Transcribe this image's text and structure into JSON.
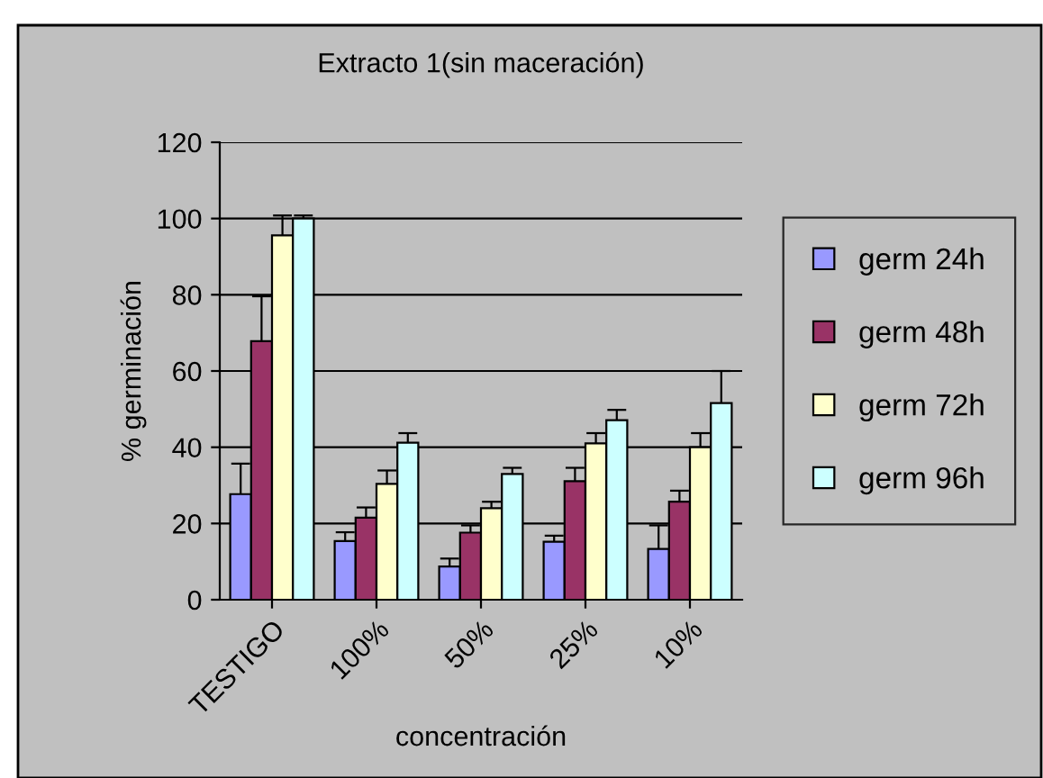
{
  "chart_data": {
    "type": "bar",
    "title": "Extracto 1(sin maceración)",
    "xlabel": "concentración",
    "ylabel": "% germinación",
    "categories": [
      "TESTIGO",
      "100%",
      "50%",
      "25%",
      "10%"
    ],
    "series": [
      {
        "name": "germ 24h",
        "color": "#9999ff",
        "values": [
          27.7,
          15.4,
          8.7,
          15.2,
          13.3
        ],
        "errors": [
          [
            27.7,
            35.7
          ],
          [
            15.4,
            17.7
          ],
          [
            8.7,
            10.8
          ],
          [
            15.2,
            16.8
          ],
          [
            13.3,
            19.5
          ]
        ]
      },
      {
        "name": "germ 48h",
        "color": "#993366",
        "values": [
          67.8,
          21.5,
          17.6,
          31.1,
          25.7
        ],
        "errors": [
          [
            67.8,
            79.6
          ],
          [
            21.5,
            24.2
          ],
          [
            17.6,
            19.5
          ],
          [
            31.1,
            34.6
          ],
          [
            25.7,
            28.6
          ]
        ]
      },
      {
        "name": "germ 72h",
        "color": "#ffffcc",
        "values": [
          95.6,
          30.4,
          24,
          41,
          40
        ],
        "errors": [
          [
            95.6,
            100.8
          ],
          [
            30.4,
            33.9
          ],
          [
            24,
            25.7
          ],
          [
            41,
            43.7
          ],
          [
            40,
            43.7
          ]
        ]
      },
      {
        "name": "germ 96h",
        "color": "#ccffff",
        "values": [
          100,
          41.2,
          33,
          47.1,
          51.6
        ],
        "errors": [
          [
            100,
            100.8
          ],
          [
            41.2,
            43.7
          ],
          [
            33,
            34.6
          ],
          [
            47.1,
            49.8
          ],
          [
            51.6,
            60
          ]
        ]
      }
    ],
    "ylim": [
      0,
      120
    ],
    "yticks": [
      0,
      20,
      40,
      60,
      80,
      100,
      120
    ],
    "grid": "y",
    "legend": "right"
  }
}
